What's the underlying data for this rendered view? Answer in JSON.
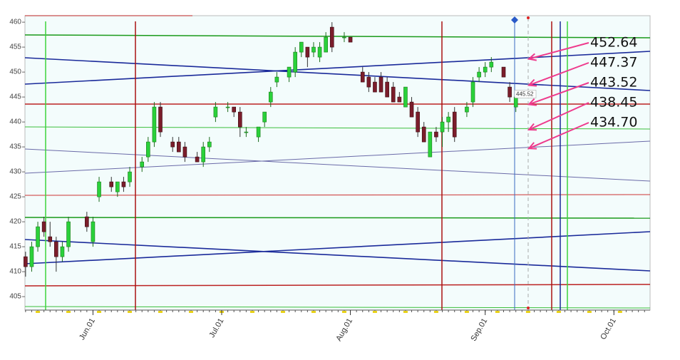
{
  "chart_data": {
    "type": "candlestick",
    "x": [
      0,
      1,
      2,
      3,
      4,
      5,
      6,
      7,
      10,
      11,
      12,
      14,
      15,
      16,
      17,
      19,
      20,
      21,
      22,
      24,
      25,
      26,
      28,
      29,
      30,
      31,
      33,
      34,
      35,
      36,
      38,
      39,
      40,
      41,
      43,
      44,
      45,
      46,
      47,
      48,
      49,
      50,
      52,
      53,
      55,
      56,
      57,
      58,
      59,
      60,
      61,
      62,
      63,
      64,
      65,
      66,
      67,
      68,
      69,
      70,
      72,
      73,
      74,
      75,
      76,
      78,
      79,
      80
    ],
    "open": [
      413,
      411,
      415,
      420,
      417,
      416,
      413,
      415,
      421,
      416,
      425,
      428,
      426,
      428,
      428,
      431,
      433,
      436,
      443,
      436,
      436,
      435,
      433,
      432,
      435,
      441,
      443,
      443,
      442,
      438,
      437,
      440,
      444,
      448,
      449,
      450,
      454,
      455,
      454,
      453,
      454,
      459,
      457,
      457,
      450,
      449,
      448,
      449,
      448,
      447,
      445,
      443,
      444,
      442,
      439,
      433,
      438,
      438,
      440,
      442,
      442,
      444,
      449,
      450,
      451,
      451,
      447,
      443
    ],
    "high": [
      414,
      416,
      420,
      421,
      420,
      417,
      416,
      421,
      422,
      421,
      429,
      429,
      428,
      429,
      431,
      433,
      437,
      444,
      444,
      437,
      437,
      436,
      434,
      436,
      437,
      444,
      444,
      443,
      443,
      439,
      439,
      442,
      447,
      450,
      451,
      455,
      456,
      455,
      456,
      456,
      458,
      460,
      458,
      457,
      451,
      450,
      449,
      450,
      449,
      448,
      446,
      447,
      445,
      443,
      440,
      438,
      439,
      441,
      442,
      443,
      444,
      449,
      451,
      452,
      453,
      451,
      448,
      446
    ],
    "low": [
      409,
      410,
      414,
      417,
      415,
      410,
      412,
      414,
      418,
      415,
      424,
      426,
      425,
      426,
      427,
      430,
      432,
      435,
      437,
      434,
      434,
      432,
      432,
      431,
      434,
      440,
      442,
      441,
      437,
      437,
      436,
      439,
      443,
      447,
      448,
      449,
      453,
      451,
      453,
      452,
      454,
      454,
      456,
      456,
      448,
      446,
      446,
      446,
      445,
      444,
      444,
      443,
      441,
      437,
      436,
      433,
      436,
      435,
      438,
      436,
      441,
      443,
      448,
      449,
      450,
      449,
      444,
      442
    ],
    "close": [
      411,
      415,
      419,
      418,
      416,
      413,
      415,
      420,
      419,
      420,
      428,
      427,
      428,
      427,
      430,
      432,
      436,
      443,
      438,
      435,
      434,
      433,
      432,
      435,
      436,
      443,
      443,
      442,
      439,
      438,
      439,
      442,
      446,
      449,
      451,
      454,
      456,
      453,
      455,
      455,
      457,
      455,
      457,
      456,
      448,
      447,
      446,
      446,
      445,
      444,
      444,
      447,
      441,
      438,
      436,
      438,
      437,
      440,
      441,
      437,
      443,
      448,
      450,
      451,
      452,
      449,
      445,
      445
    ],
    "up_color": "#2ad13a",
    "down_color": "#7b1d2b",
    "xlim": [
      -0.1,
      101.9
    ],
    "ylim": [
      402.3,
      461.3
    ],
    "yticks": [
      405,
      410,
      415,
      420,
      425,
      430,
      435,
      440,
      445,
      450,
      455,
      460
    ],
    "xticks": [
      {
        "value": 11,
        "label": "Jun.01"
      },
      {
        "value": 32,
        "label": "Jul.01"
      },
      {
        "value": 53,
        "label": "Aug.01"
      },
      {
        "value": 75,
        "label": "Sep.01"
      },
      {
        "value": 96,
        "label": "Oct.01"
      }
    ],
    "cursor_label": {
      "value": 445.52,
      "label": "445.52"
    },
    "annotations": [
      {
        "value": 452.64,
        "label": "452.64"
      },
      {
        "value": 447.37,
        "label": "447.37"
      },
      {
        "value": 443.52,
        "label": "443.52"
      },
      {
        "value": 438.45,
        "label": "438.45"
      },
      {
        "value": 434.7,
        "label": "434.70"
      }
    ],
    "annotation_color": "#ee3a8c"
  }
}
